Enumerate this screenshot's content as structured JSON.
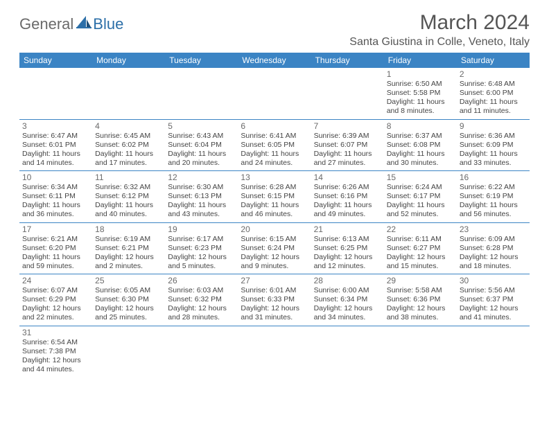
{
  "logo": {
    "part1": "General",
    "part2": "Blue"
  },
  "title": "March 2024",
  "location": "Santa Giustina in Colle, Veneto, Italy",
  "colors": {
    "header_bg": "#3b84c4",
    "header_fg": "#ffffff",
    "border": "#3b84c4",
    "logo_gray": "#6a6a6a",
    "logo_blue": "#2c6fa8",
    "title_color": "#555555"
  },
  "day_headers": [
    "Sunday",
    "Monday",
    "Tuesday",
    "Wednesday",
    "Thursday",
    "Friday",
    "Saturday"
  ],
  "weeks": [
    [
      null,
      null,
      null,
      null,
      null,
      {
        "n": "1",
        "sr": "Sunrise: 6:50 AM",
        "ss": "Sunset: 5:58 PM",
        "d1": "Daylight: 11 hours",
        "d2": "and 8 minutes."
      },
      {
        "n": "2",
        "sr": "Sunrise: 6:48 AM",
        "ss": "Sunset: 6:00 PM",
        "d1": "Daylight: 11 hours",
        "d2": "and 11 minutes."
      }
    ],
    [
      {
        "n": "3",
        "sr": "Sunrise: 6:47 AM",
        "ss": "Sunset: 6:01 PM",
        "d1": "Daylight: 11 hours",
        "d2": "and 14 minutes."
      },
      {
        "n": "4",
        "sr": "Sunrise: 6:45 AM",
        "ss": "Sunset: 6:02 PM",
        "d1": "Daylight: 11 hours",
        "d2": "and 17 minutes."
      },
      {
        "n": "5",
        "sr": "Sunrise: 6:43 AM",
        "ss": "Sunset: 6:04 PM",
        "d1": "Daylight: 11 hours",
        "d2": "and 20 minutes."
      },
      {
        "n": "6",
        "sr": "Sunrise: 6:41 AM",
        "ss": "Sunset: 6:05 PM",
        "d1": "Daylight: 11 hours",
        "d2": "and 24 minutes."
      },
      {
        "n": "7",
        "sr": "Sunrise: 6:39 AM",
        "ss": "Sunset: 6:07 PM",
        "d1": "Daylight: 11 hours",
        "d2": "and 27 minutes."
      },
      {
        "n": "8",
        "sr": "Sunrise: 6:37 AM",
        "ss": "Sunset: 6:08 PM",
        "d1": "Daylight: 11 hours",
        "d2": "and 30 minutes."
      },
      {
        "n": "9",
        "sr": "Sunrise: 6:36 AM",
        "ss": "Sunset: 6:09 PM",
        "d1": "Daylight: 11 hours",
        "d2": "and 33 minutes."
      }
    ],
    [
      {
        "n": "10",
        "sr": "Sunrise: 6:34 AM",
        "ss": "Sunset: 6:11 PM",
        "d1": "Daylight: 11 hours",
        "d2": "and 36 minutes."
      },
      {
        "n": "11",
        "sr": "Sunrise: 6:32 AM",
        "ss": "Sunset: 6:12 PM",
        "d1": "Daylight: 11 hours",
        "d2": "and 40 minutes."
      },
      {
        "n": "12",
        "sr": "Sunrise: 6:30 AM",
        "ss": "Sunset: 6:13 PM",
        "d1": "Daylight: 11 hours",
        "d2": "and 43 minutes."
      },
      {
        "n": "13",
        "sr": "Sunrise: 6:28 AM",
        "ss": "Sunset: 6:15 PM",
        "d1": "Daylight: 11 hours",
        "d2": "and 46 minutes."
      },
      {
        "n": "14",
        "sr": "Sunrise: 6:26 AM",
        "ss": "Sunset: 6:16 PM",
        "d1": "Daylight: 11 hours",
        "d2": "and 49 minutes."
      },
      {
        "n": "15",
        "sr": "Sunrise: 6:24 AM",
        "ss": "Sunset: 6:17 PM",
        "d1": "Daylight: 11 hours",
        "d2": "and 52 minutes."
      },
      {
        "n": "16",
        "sr": "Sunrise: 6:22 AM",
        "ss": "Sunset: 6:19 PM",
        "d1": "Daylight: 11 hours",
        "d2": "and 56 minutes."
      }
    ],
    [
      {
        "n": "17",
        "sr": "Sunrise: 6:21 AM",
        "ss": "Sunset: 6:20 PM",
        "d1": "Daylight: 11 hours",
        "d2": "and 59 minutes."
      },
      {
        "n": "18",
        "sr": "Sunrise: 6:19 AM",
        "ss": "Sunset: 6:21 PM",
        "d1": "Daylight: 12 hours",
        "d2": "and 2 minutes."
      },
      {
        "n": "19",
        "sr": "Sunrise: 6:17 AM",
        "ss": "Sunset: 6:23 PM",
        "d1": "Daylight: 12 hours",
        "d2": "and 5 minutes."
      },
      {
        "n": "20",
        "sr": "Sunrise: 6:15 AM",
        "ss": "Sunset: 6:24 PM",
        "d1": "Daylight: 12 hours",
        "d2": "and 9 minutes."
      },
      {
        "n": "21",
        "sr": "Sunrise: 6:13 AM",
        "ss": "Sunset: 6:25 PM",
        "d1": "Daylight: 12 hours",
        "d2": "and 12 minutes."
      },
      {
        "n": "22",
        "sr": "Sunrise: 6:11 AM",
        "ss": "Sunset: 6:27 PM",
        "d1": "Daylight: 12 hours",
        "d2": "and 15 minutes."
      },
      {
        "n": "23",
        "sr": "Sunrise: 6:09 AM",
        "ss": "Sunset: 6:28 PM",
        "d1": "Daylight: 12 hours",
        "d2": "and 18 minutes."
      }
    ],
    [
      {
        "n": "24",
        "sr": "Sunrise: 6:07 AM",
        "ss": "Sunset: 6:29 PM",
        "d1": "Daylight: 12 hours",
        "d2": "and 22 minutes."
      },
      {
        "n": "25",
        "sr": "Sunrise: 6:05 AM",
        "ss": "Sunset: 6:30 PM",
        "d1": "Daylight: 12 hours",
        "d2": "and 25 minutes."
      },
      {
        "n": "26",
        "sr": "Sunrise: 6:03 AM",
        "ss": "Sunset: 6:32 PM",
        "d1": "Daylight: 12 hours",
        "d2": "and 28 minutes."
      },
      {
        "n": "27",
        "sr": "Sunrise: 6:01 AM",
        "ss": "Sunset: 6:33 PM",
        "d1": "Daylight: 12 hours",
        "d2": "and 31 minutes."
      },
      {
        "n": "28",
        "sr": "Sunrise: 6:00 AM",
        "ss": "Sunset: 6:34 PM",
        "d1": "Daylight: 12 hours",
        "d2": "and 34 minutes."
      },
      {
        "n": "29",
        "sr": "Sunrise: 5:58 AM",
        "ss": "Sunset: 6:36 PM",
        "d1": "Daylight: 12 hours",
        "d2": "and 38 minutes."
      },
      {
        "n": "30",
        "sr": "Sunrise: 5:56 AM",
        "ss": "Sunset: 6:37 PM",
        "d1": "Daylight: 12 hours",
        "d2": "and 41 minutes."
      }
    ],
    [
      {
        "n": "31",
        "sr": "Sunrise: 6:54 AM",
        "ss": "Sunset: 7:38 PM",
        "d1": "Daylight: 12 hours",
        "d2": "and 44 minutes."
      },
      null,
      null,
      null,
      null,
      null,
      null
    ]
  ]
}
